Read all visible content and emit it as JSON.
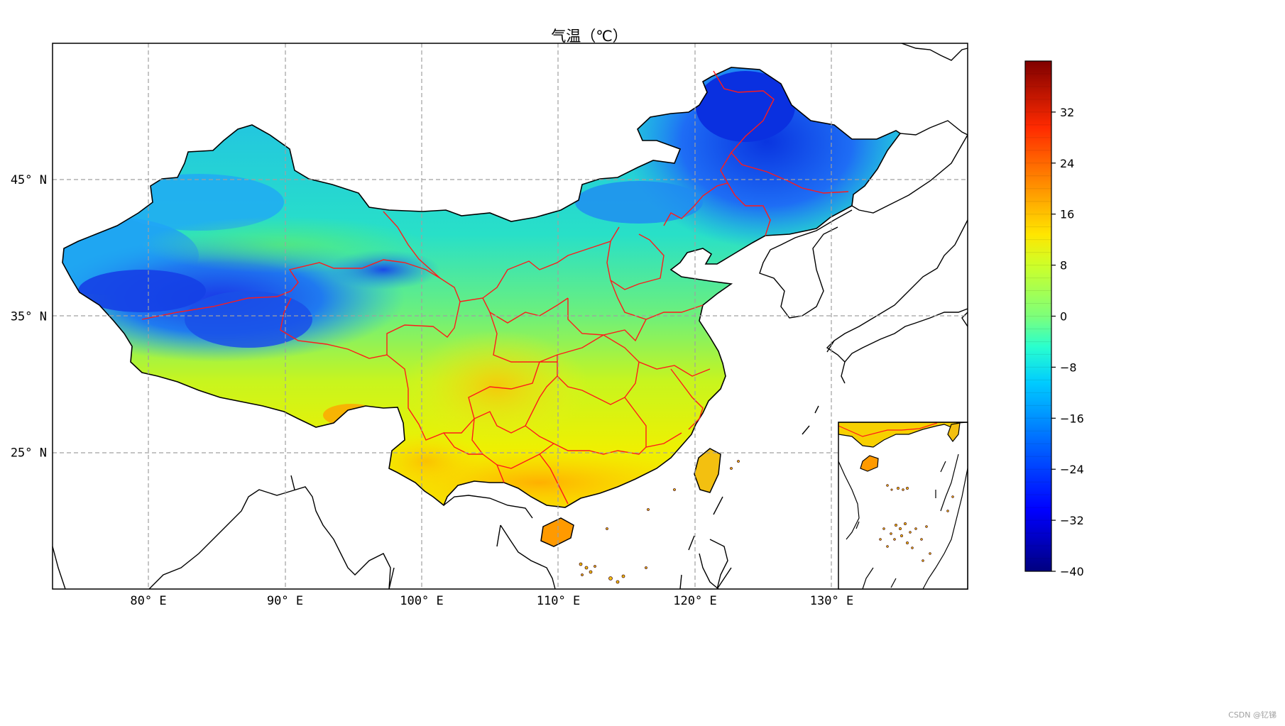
{
  "title": "气温（℃）",
  "watermark": "CSDN @钇锑",
  "map": {
    "lon_ticks": [
      {
        "label": "80° E",
        "lon": 80
      },
      {
        "label": "90° E",
        "lon": 90
      },
      {
        "label": "100° E",
        "lon": 100
      },
      {
        "label": "110° E",
        "lon": 110
      },
      {
        "label": "120° E",
        "lon": 120
      },
      {
        "label": "130° E",
        "lon": 130
      }
    ],
    "lat_ticks": [
      {
        "label": "45° N",
        "lat": 45
      },
      {
        "label": "35° N",
        "lat": 35
      },
      {
        "label": "25° N",
        "lat": 25
      }
    ],
    "gridlines": true,
    "inset": "south-china-sea"
  },
  "colorbar": {
    "colormap": "jet",
    "min": -40,
    "max": 40,
    "tick_labels": [
      "32",
      "24",
      "16",
      "8",
      "0",
      "−8",
      "−16",
      "−24",
      "−32",
      "−40"
    ],
    "tick_values": [
      32,
      24,
      16,
      8,
      0,
      -8,
      -16,
      -24,
      -32,
      -40
    ]
  }
}
